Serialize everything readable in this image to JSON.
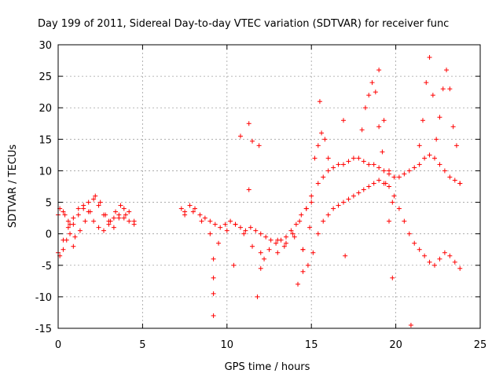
{
  "chart_data": {
    "type": "scatter",
    "title": "Day 199 of 2011, Sidereal Day-to-day VTEC variation (SDTVAR) for receiver func",
    "xlabel": "GPS time / hours",
    "ylabel": "SDTVAR / TECUs",
    "xlim": [
      0,
      25
    ],
    "ylim": [
      -15,
      30
    ],
    "xticks": [
      "0",
      "5",
      "10",
      "15",
      "20",
      "25"
    ],
    "yticks": [
      "-15",
      "-10",
      "-5",
      "0",
      "5",
      "10",
      "15",
      "20",
      "25",
      "30"
    ],
    "grid": true,
    "marker": "+",
    "color": "#ff0000",
    "series": [
      {
        "name": "SDTVAR",
        "x": [
          0.0,
          0.3,
          0.6,
          0.9,
          1.2,
          1.5,
          1.8,
          2.1,
          2.4,
          2.7,
          3.0,
          3.3,
          3.6,
          3.9,
          4.2,
          4.5,
          0.0,
          0.3,
          0.6,
          0.9,
          1.2,
          1.5,
          1.8,
          2.1,
          2.4,
          2.7,
          3.0,
          3.3,
          3.6,
          3.9,
          4.2,
          4.5,
          0.1,
          0.4,
          0.7,
          1.0,
          1.3,
          1.6,
          1.9,
          2.2,
          2.5,
          2.8,
          3.1,
          3.4,
          3.7,
          4.0,
          0.1,
          0.3,
          0.5,
          0.7,
          0.9,
          7.3,
          7.5,
          7.8,
          8.1,
          8.4,
          8.7,
          9.0,
          9.3,
          9.6,
          9.9,
          10.2,
          10.5,
          10.8,
          11.1,
          11.4,
          11.7,
          12.0,
          12.3,
          12.6,
          12.9,
          13.2,
          13.5,
          13.8,
          14.1,
          14.4,
          14.7,
          15.0,
          7.5,
          8.0,
          8.5,
          9.0,
          9.5,
          10.0,
          10.5,
          11.0,
          11.5,
          12.0,
          12.5,
          13.0,
          13.5,
          14.0,
          14.5,
          9.2,
          9.2,
          9.2,
          9.2,
          10.4,
          11.3,
          11.5,
          11.9,
          12.0,
          12.2,
          11.8,
          10.8,
          11.3,
          13.0,
          13.4,
          13.9,
          14.3,
          14.7,
          15.0,
          15.4,
          15.7,
          16.0,
          16.3,
          16.6,
          16.9,
          17.2,
          17.5,
          17.8,
          18.1,
          18.4,
          18.7,
          19.0,
          19.3,
          19.6,
          19.9,
          20.2,
          20.5,
          20.8,
          21.1,
          21.4,
          21.7,
          22.0,
          22.3,
          22.6,
          22.9,
          23.2,
          23.5,
          23.8,
          14.5,
          14.8,
          15.1,
          15.4,
          15.7,
          16.0,
          16.3,
          16.6,
          16.9,
          17.2,
          17.5,
          17.8,
          18.1,
          18.4,
          18.7,
          19.0,
          19.3,
          19.6,
          19.9,
          20.2,
          20.5,
          20.8,
          21.1,
          21.4,
          21.7,
          22.0,
          22.3,
          22.6,
          22.9,
          23.2,
          23.5,
          23.8,
          15.2,
          15.4,
          15.6,
          15.8,
          16.0,
          18.0,
          18.2,
          18.4,
          18.6,
          18.8,
          19.0,
          19.2,
          19.4,
          19.6,
          19.8,
          21.4,
          21.6,
          21.8,
          22.0,
          22.2,
          22.4,
          22.6,
          22.8,
          23.0,
          23.2,
          23.4,
          23.6,
          23.8,
          19.0,
          19.3,
          19.6,
          19.8,
          20.9,
          15.5,
          17.0,
          16.9,
          14.2,
          14.5,
          14.9
        ],
        "y": [
          3.0,
          3.5,
          2.0,
          1.5,
          3.0,
          4.0,
          5.0,
          5.5,
          4.5,
          3.0,
          2.0,
          1.0,
          2.5,
          4.0,
          3.5,
          2.0,
          -3.0,
          -1.0,
          1.0,
          2.5,
          4.0,
          4.5,
          3.5,
          2.0,
          1.0,
          0.5,
          1.5,
          2.5,
          3.0,
          2.5,
          2.0,
          1.5,
          4.0,
          3.0,
          1.5,
          -0.5,
          0.5,
          2.0,
          3.5,
          6.0,
          5.0,
          3.0,
          2.0,
          3.5,
          4.5,
          3.0,
          -3.5,
          -2.5,
          -1.0,
          0.0,
          -2.0,
          4.0,
          3.5,
          4.5,
          4.0,
          3.0,
          2.5,
          2.0,
          1.5,
          1.0,
          1.5,
          2.0,
          1.5,
          1.0,
          0.5,
          1.0,
          0.5,
          0.0,
          -0.5,
          -1.0,
          -1.5,
          -1.0,
          -0.5,
          0.5,
          1.5,
          3.0,
          4.0,
          5.0,
          3.0,
          3.5,
          2.0,
          0.0,
          -1.5,
          0.5,
          1.5,
          0.0,
          -2.0,
          -3.0,
          -2.5,
          -1.0,
          -1.5,
          -0.5,
          -2.5,
          -13.0,
          -9.5,
          -7.0,
          -4.0,
          -5.0,
          17.5,
          14.7,
          14.0,
          -5.5,
          -4.0,
          -10.0,
          15.5,
          7.0,
          -3.0,
          -2.0,
          0.0,
          2.0,
          4.0,
          6.0,
          8.0,
          9.0,
          10.0,
          10.5,
          11.0,
          11.0,
          11.5,
          12.0,
          12.0,
          11.5,
          11.0,
          11.0,
          10.5,
          10.0,
          9.5,
          9.0,
          9.0,
          9.5,
          10.0,
          10.5,
          11.0,
          12.0,
          12.5,
          12.0,
          11.0,
          10.0,
          9.0,
          8.5,
          8.0,
          -2.5,
          -5.0,
          -3.0,
          0.0,
          2.0,
          3.0,
          4.0,
          4.5,
          5.0,
          5.5,
          6.0,
          6.5,
          7.0,
          7.5,
          8.0,
          8.5,
          8.0,
          7.5,
          6.0,
          4.0,
          2.0,
          0.0,
          -1.5,
          -2.5,
          -3.5,
          -4.5,
          -5.0,
          -4.0,
          -3.0,
          -3.5,
          -4.5,
          -5.5,
          12.0,
          14.0,
          16.0,
          15.0,
          12.0,
          16.5,
          20.0,
          22.0,
          24.0,
          22.5,
          17.0,
          13.0,
          8.0,
          2.0,
          -7.0,
          14.0,
          18.0,
          24.0,
          28.0,
          22.0,
          15.0,
          18.5,
          23.0,
          26.0,
          23.0,
          17.0,
          14.0,
          8.0,
          26.0,
          18.0,
          10.0,
          5.0,
          -14.5,
          21.0,
          -3.5,
          18.0,
          -8.0,
          -6.0,
          1.0
        ]
      }
    ]
  }
}
